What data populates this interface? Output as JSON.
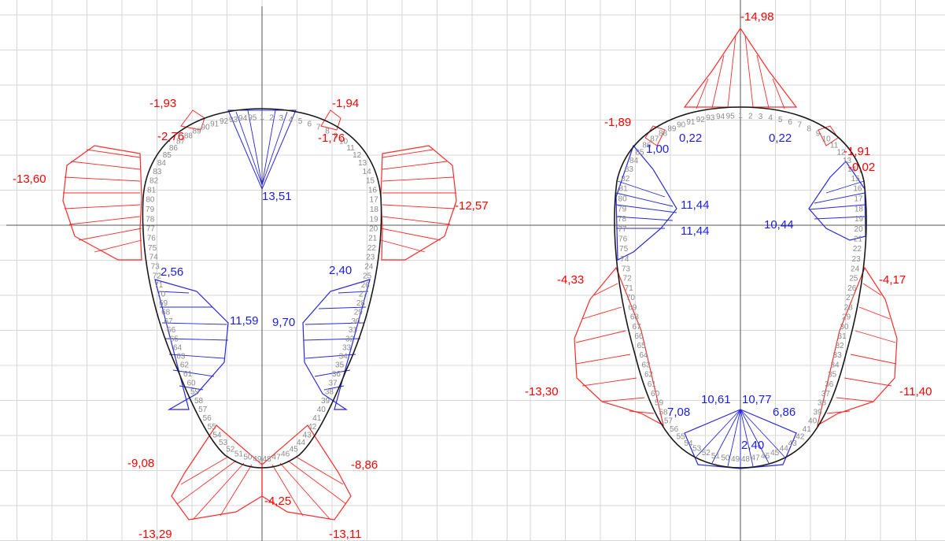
{
  "colors": {
    "negative": "#ff0000",
    "positive": "#1e1ee0",
    "outline": "#1a1a1a",
    "node_numbers": "#8a8a8a",
    "grid": "#d7d7d7"
  },
  "left_panel": {
    "labels_red": [
      "-1,93",
      "-1,94",
      "-2,76",
      "-1,76",
      "-13,60",
      "-12,57",
      "-9,08",
      "-8,86",
      "-4,25",
      "-13,29",
      "-13,11"
    ],
    "labels_blue": [
      "13,51",
      "2,56",
      "2,40",
      "11,59",
      "9,70"
    ],
    "node_numbers": [
      "1",
      "2",
      "3",
      "4",
      "5",
      "6",
      "7",
      "8",
      "9",
      "10",
      "11",
      "12",
      "13",
      "14",
      "15",
      "16",
      "17",
      "18",
      "19",
      "20",
      "21",
      "22",
      "23",
      "24",
      "25",
      "26",
      "27",
      "28",
      "29",
      "30",
      "31",
      "32",
      "33",
      "34",
      "35",
      "36",
      "37",
      "38",
      "39",
      "40",
      "41",
      "42",
      "43",
      "44",
      "45",
      "46",
      "47",
      "48",
      "49",
      "50",
      "51",
      "52",
      "53",
      "54",
      "55",
      "56",
      "57",
      "58",
      "59",
      "60",
      "61",
      "62",
      "63",
      "64",
      "65",
      "66",
      "67",
      "68",
      "69",
      "70",
      "71",
      "72",
      "73",
      "74",
      "75",
      "76",
      "77",
      "78",
      "79",
      "80",
      "81",
      "82",
      "83",
      "84",
      "85",
      "86",
      "87",
      "88",
      "89",
      "90",
      "91",
      "92",
      "93",
      "94",
      "95"
    ]
  },
  "right_panel": {
    "labels_red": [
      "-14,98",
      "-1,89",
      "-1,91",
      "-0,02",
      "-4,33",
      "-4,17",
      "-13,30",
      "-11,40"
    ],
    "labels_blue": [
      "1,00",
      "0,22",
      "0,22",
      "11,44",
      "11,44",
      "10,44",
      "10,61",
      "10,77",
      "7,08",
      "6,86",
      "2,40"
    ],
    "node_numbers": [
      "1",
      "2",
      "3",
      "4",
      "5",
      "6",
      "7",
      "8",
      "9",
      "10",
      "11",
      "12",
      "13",
      "14",
      "15",
      "16",
      "17",
      "18",
      "19",
      "20",
      "21",
      "22",
      "23",
      "24",
      "25",
      "26",
      "27",
      "28",
      "29",
      "30",
      "31",
      "32",
      "33",
      "34",
      "35",
      "36",
      "37",
      "38",
      "39",
      "40",
      "41",
      "42",
      "43",
      "44",
      "45",
      "46",
      "47",
      "48",
      "49",
      "50",
      "51",
      "52",
      "53",
      "54",
      "55",
      "56",
      "57",
      "58",
      "59",
      "60",
      "61",
      "62",
      "63",
      "64",
      "65",
      "66",
      "67",
      "68",
      "69",
      "70",
      "71",
      "72",
      "73",
      "74",
      "75",
      "76",
      "77",
      "78",
      "79",
      "80",
      "81",
      "82",
      "83",
      "84",
      "85",
      "86",
      "87",
      "88",
      "89",
      "90",
      "91",
      "92",
      "93",
      "94",
      "95"
    ]
  }
}
